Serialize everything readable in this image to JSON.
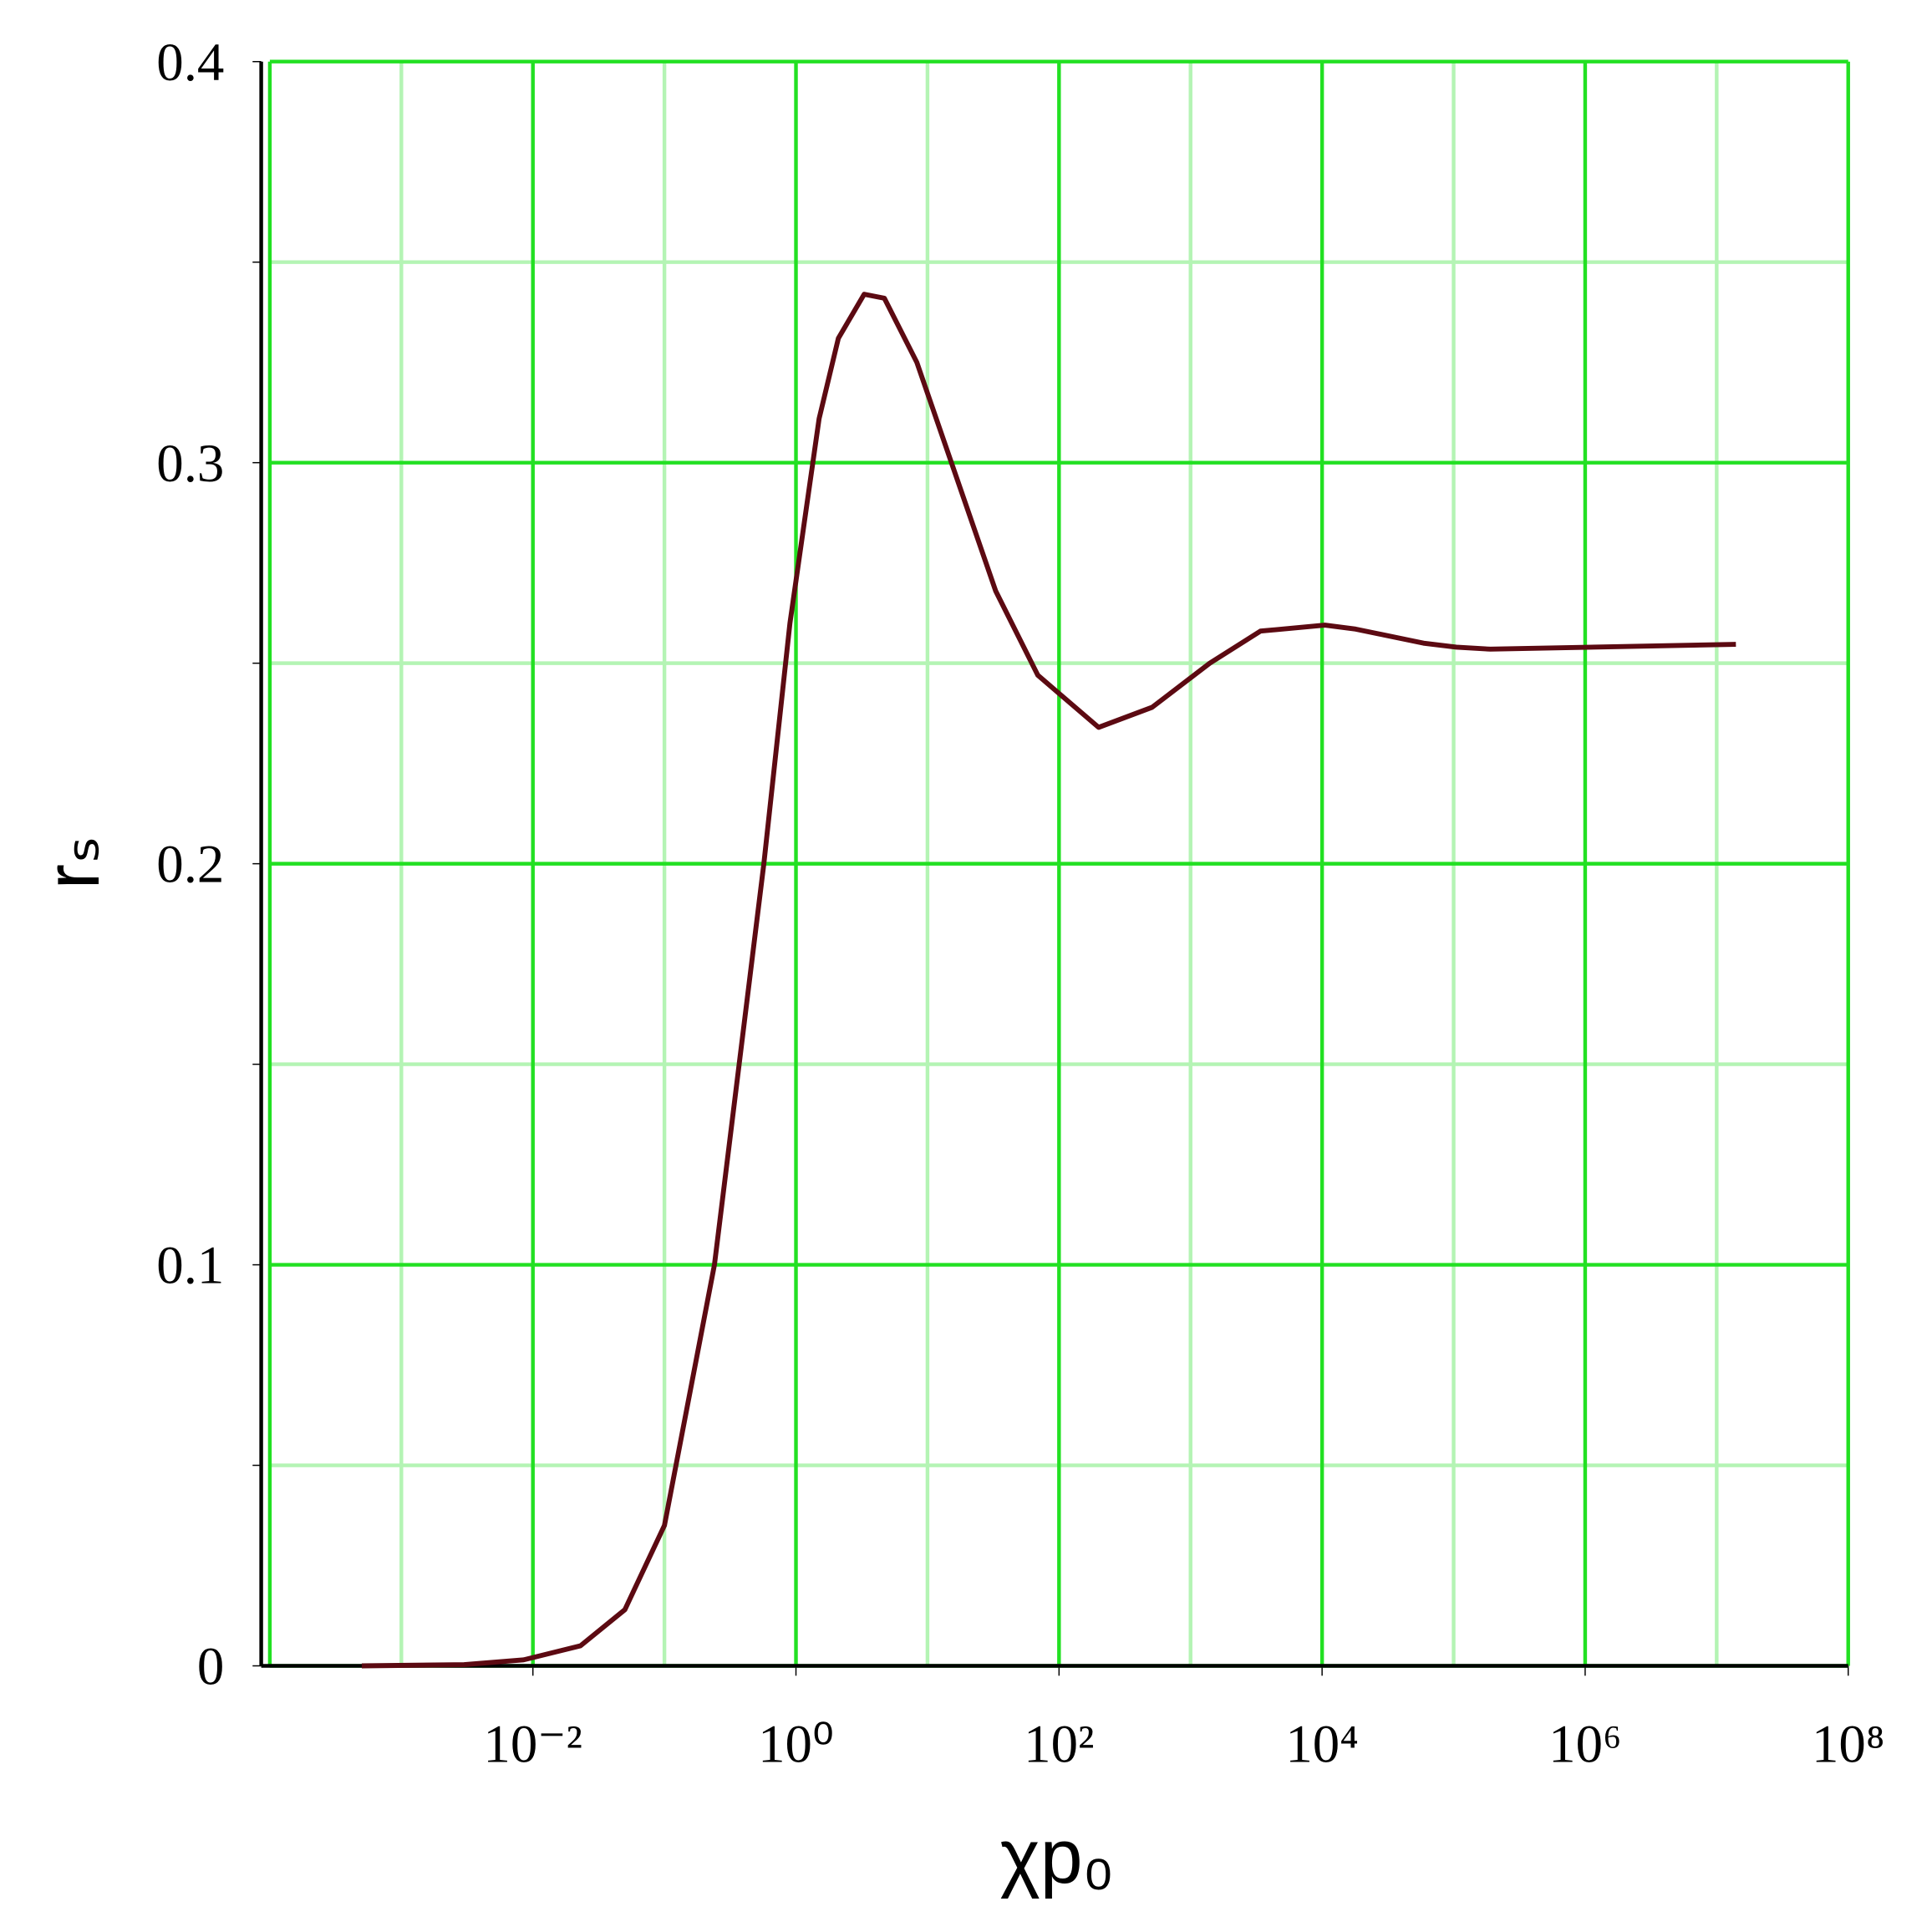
{
  "chart_data": {
    "type": "line",
    "x_label": "χp₀",
    "y_label": "rₛ",
    "x_log": true,
    "grid": true,
    "xlim": [
      0.0001,
      100000000
    ],
    "xticks": [
      {
        "value": 0.01,
        "label": "10⁻²"
      },
      {
        "value": 1,
        "label": "10⁰"
      },
      {
        "value": 100,
        "label": "10²"
      },
      {
        "value": 10000,
        "label": "10⁴"
      },
      {
        "value": 1000000,
        "label": "10⁶"
      },
      {
        "value": 100000000,
        "label": "10⁸"
      }
    ],
    "x_minor_ticks": [
      0.001,
      0.1,
      10,
      1000,
      100000,
      10000000
    ],
    "ylim": [
      0,
      0.4
    ],
    "yticks": [
      0,
      0.1,
      0.2,
      0.3,
      0.4
    ],
    "y_minor_ticks": [
      0.05,
      0.15,
      0.25,
      0.35
    ],
    "x": [
      0.0005,
      0.003,
      0.0085,
      0.023,
      0.05,
      0.1,
      0.24,
      0.57,
      0.9,
      1.5,
      2.1,
      3.3,
      4.7,
      8.3,
      33,
      69,
      200,
      510,
      1400,
      3400,
      10500,
      18000,
      59000,
      105000,
      190000,
      14000000
    ],
    "series": [
      {
        "color": "#5c0a12",
        "values": [
          0,
          0.0003,
          0.0015,
          0.005,
          0.014,
          0.035,
          0.1,
          0.2,
          0.26,
          0.311,
          0.331,
          0.342,
          0.341,
          0.325,
          0.268,
          0.247,
          0.234,
          0.239,
          0.25,
          0.258,
          0.2595,
          0.2585,
          0.255,
          0.254,
          0.2535,
          0.2547
        ]
      }
    ]
  }
}
